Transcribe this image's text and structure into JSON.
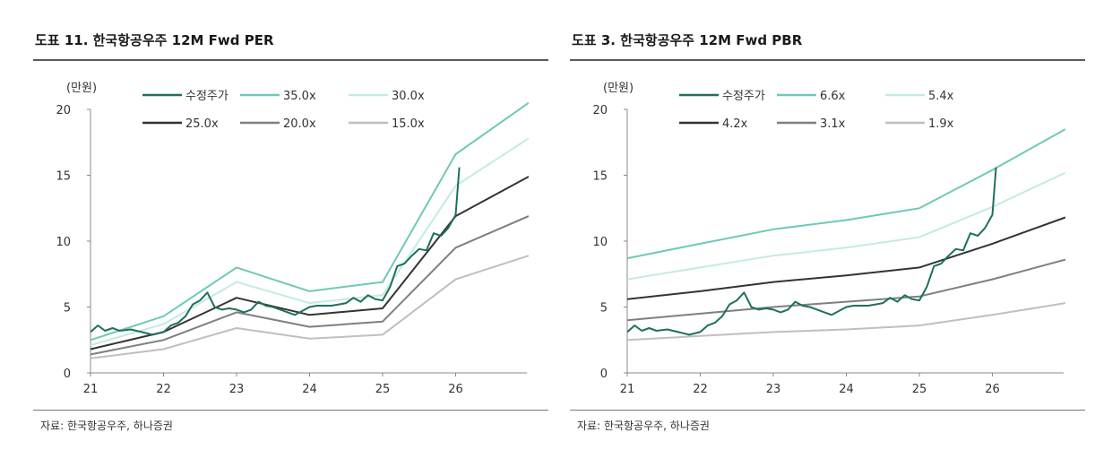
{
  "chart_data": [
    {
      "type": "line",
      "title": "도표 11. 한국항공우주 12M Fwd PER",
      "ylabel": "(만원)",
      "ylim": [
        0,
        20
      ],
      "yticks": [
        "0",
        "5",
        "10",
        "15",
        "20"
      ],
      "xlim": [
        21,
        27
      ],
      "xticks": [
        "21",
        "22",
        "23",
        "24",
        "25",
        "26"
      ],
      "legend": [
        "수정주가",
        "35.0x",
        "30.0x",
        "25.0x",
        "20.0x",
        "15.0x"
      ],
      "series": [
        {
          "name": "35.0x",
          "color": "#6ec9b6",
          "x": [
            21,
            22,
            23,
            24,
            25,
            26,
            27
          ],
          "values": [
            2.5,
            4.3,
            8.0,
            6.2,
            6.9,
            16.6,
            20.5
          ]
        },
        {
          "name": "30.0x",
          "color": "#c4ebe0",
          "x": [
            21,
            22,
            23,
            24,
            25,
            26,
            27
          ],
          "values": [
            2.1,
            3.7,
            6.9,
            5.3,
            5.9,
            14.2,
            17.8
          ]
        },
        {
          "name": "25.0x",
          "color": "#333333",
          "x": [
            21,
            22,
            23,
            24,
            25,
            26,
            27
          ],
          "values": [
            1.8,
            3.1,
            5.7,
            4.4,
            4.9,
            11.9,
            14.9
          ]
        },
        {
          "name": "20.0x",
          "color": "#7f7f7f",
          "x": [
            21,
            22,
            23,
            24,
            25,
            26,
            27
          ],
          "values": [
            1.4,
            2.5,
            4.6,
            3.5,
            3.9,
            9.5,
            11.9
          ]
        },
        {
          "name": "15.0x",
          "color": "#bfbfbf",
          "x": [
            21,
            22,
            23,
            24,
            25,
            26,
            27
          ],
          "values": [
            1.1,
            1.8,
            3.4,
            2.6,
            2.9,
            7.1,
            8.9
          ]
        },
        {
          "name": "수정주가",
          "color": "#1f6f5f",
          "x": [
            21.0,
            21.1,
            21.2,
            21.3,
            21.4,
            21.55,
            21.7,
            21.85,
            22.0,
            22.1,
            22.2,
            22.3,
            22.4,
            22.5,
            22.6,
            22.7,
            22.8,
            22.9,
            23.0,
            23.1,
            23.2,
            23.3,
            23.4,
            23.5,
            23.6,
            23.7,
            23.8,
            23.9,
            24.0,
            24.1,
            24.2,
            24.3,
            24.4,
            24.5,
            24.6,
            24.7,
            24.8,
            24.9,
            25.0,
            25.1,
            25.2,
            25.3,
            25.4,
            25.5,
            25.6,
            25.7,
            25.8,
            25.9,
            26.0,
            26.05
          ],
          "values": [
            3.1,
            3.6,
            3.2,
            3.4,
            3.2,
            3.3,
            3.1,
            2.9,
            3.1,
            3.6,
            3.8,
            4.3,
            5.2,
            5.5,
            6.1,
            5.0,
            4.8,
            4.9,
            4.8,
            4.6,
            4.8,
            5.4,
            5.1,
            5.0,
            4.8,
            4.6,
            4.4,
            4.7,
            5.0,
            5.1,
            5.1,
            5.1,
            5.2,
            5.3,
            5.7,
            5.4,
            5.9,
            5.6,
            5.5,
            6.5,
            8.1,
            8.3,
            8.9,
            9.4,
            9.3,
            10.6,
            10.4,
            11.0,
            12.0,
            15.6
          ]
        }
      ]
    },
    {
      "type": "line",
      "title": "도표 3. 한국항공우주 12M Fwd PBR",
      "ylabel": "(만원)",
      "ylim": [
        0,
        20
      ],
      "yticks": [
        "0",
        "5",
        "10",
        "15",
        "20"
      ],
      "xlim": [
        21,
        27
      ],
      "xticks": [
        "21",
        "22",
        "23",
        "24",
        "25",
        "26"
      ],
      "legend": [
        "수정주가",
        "6.6x",
        "5.4x",
        "4.2x",
        "3.1x",
        "1.9x"
      ],
      "series": [
        {
          "name": "6.6x",
          "color": "#6ec9b6",
          "x": [
            21,
            22,
            23,
            24,
            25,
            26,
            27
          ],
          "values": [
            8.7,
            9.8,
            10.9,
            11.6,
            12.5,
            15.4,
            18.5
          ]
        },
        {
          "name": "5.4x",
          "color": "#c4ebe0",
          "x": [
            21,
            22,
            23,
            24,
            25,
            26,
            27
          ],
          "values": [
            7.1,
            8.0,
            8.9,
            9.5,
            10.3,
            12.6,
            15.2
          ]
        },
        {
          "name": "4.2x",
          "color": "#333333",
          "x": [
            21,
            22,
            23,
            24,
            25,
            26,
            27
          ],
          "values": [
            5.6,
            6.2,
            6.9,
            7.4,
            8.0,
            9.8,
            11.8
          ]
        },
        {
          "name": "3.1x",
          "color": "#7f7f7f",
          "x": [
            21,
            22,
            23,
            24,
            25,
            26,
            27
          ],
          "values": [
            4.0,
            4.5,
            5.0,
            5.4,
            5.8,
            7.1,
            8.6
          ]
        },
        {
          "name": "1.9x",
          "color": "#bfbfbf",
          "x": [
            21,
            22,
            23,
            24,
            25,
            26,
            27
          ],
          "values": [
            2.5,
            2.8,
            3.1,
            3.3,
            3.6,
            4.4,
            5.3
          ]
        },
        {
          "name": "수정주가",
          "color": "#1f6f5f",
          "x": [
            21.0,
            21.1,
            21.2,
            21.3,
            21.4,
            21.55,
            21.7,
            21.85,
            22.0,
            22.1,
            22.2,
            22.3,
            22.4,
            22.5,
            22.6,
            22.7,
            22.8,
            22.9,
            23.0,
            23.1,
            23.2,
            23.3,
            23.4,
            23.5,
            23.6,
            23.7,
            23.8,
            23.9,
            24.0,
            24.1,
            24.2,
            24.3,
            24.4,
            24.5,
            24.6,
            24.7,
            24.8,
            24.9,
            25.0,
            25.1,
            25.2,
            25.3,
            25.4,
            25.5,
            25.6,
            25.7,
            25.8,
            25.9,
            26.0,
            26.05
          ],
          "values": [
            3.1,
            3.6,
            3.2,
            3.4,
            3.2,
            3.3,
            3.1,
            2.9,
            3.1,
            3.6,
            3.8,
            4.3,
            5.2,
            5.5,
            6.1,
            5.0,
            4.8,
            4.9,
            4.8,
            4.6,
            4.8,
            5.4,
            5.1,
            5.0,
            4.8,
            4.6,
            4.4,
            4.7,
            5.0,
            5.1,
            5.1,
            5.1,
            5.2,
            5.3,
            5.7,
            5.4,
            5.9,
            5.6,
            5.5,
            6.5,
            8.1,
            8.3,
            8.9,
            9.4,
            9.3,
            10.6,
            10.4,
            11.0,
            12.0,
            15.6
          ]
        }
      ]
    }
  ],
  "panels": [
    {
      "title": "도표 11. 한국항공우주 12M Fwd PER",
      "source": "자료: 한국항공우주, 하나증권"
    },
    {
      "title": "도표 3. 한국항공우주 12M Fwd PBR",
      "source": "자료: 한국항공우주, 하나증권"
    }
  ]
}
